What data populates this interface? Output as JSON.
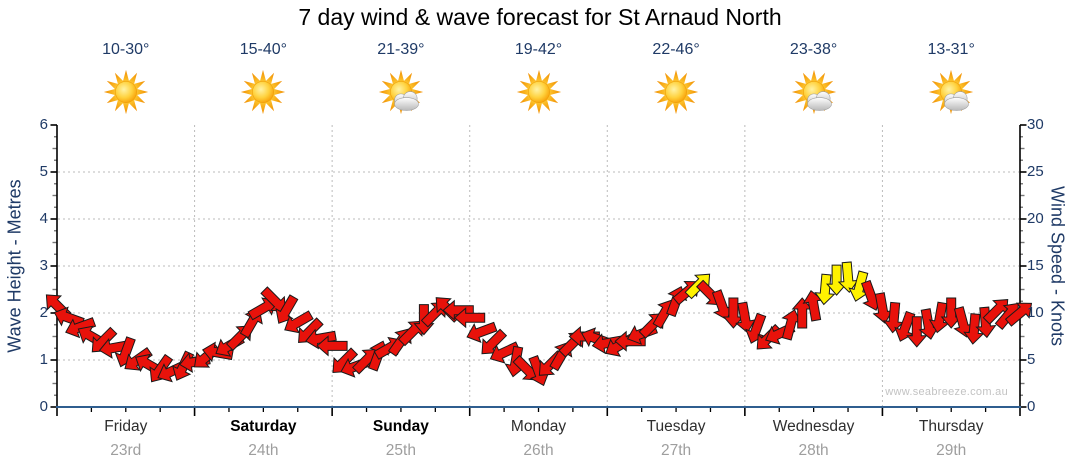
{
  "title": "7 day wind & wave forecast for St Arnaud North",
  "watermark": "www.seabreeze.com.au",
  "colors": {
    "arrow_red": "#E8120B",
    "arrow_yellow": "#FFF200",
    "arrow_outline": "#1A1A1A",
    "axis_text_navy": "#1F3A66",
    "bottom_axis_blue": "#2F5E8F",
    "axis_black": "#000000",
    "grid_gray": "#BBBBBB",
    "minor_tick_gray": "#777777",
    "day_name_gray": "#2e2e2e",
    "date_gray": "#9E9E9E",
    "watermark_gray": "#C3C3C3"
  },
  "days": [
    {
      "name": "Friday",
      "date": "23rd",
      "temp": "10-30°",
      "icon": "sun",
      "weekend": false
    },
    {
      "name": "Saturday",
      "date": "24th",
      "temp": "15-40°",
      "icon": "sun",
      "weekend": true
    },
    {
      "name": "Sunday",
      "date": "25th",
      "temp": "21-39°",
      "icon": "sun-cloud",
      "weekend": true
    },
    {
      "name": "Monday",
      "date": "26th",
      "temp": "19-42°",
      "icon": "sun",
      "weekend": false
    },
    {
      "name": "Tuesday",
      "date": "27th",
      "temp": "22-46°",
      "icon": "sun",
      "weekend": false
    },
    {
      "name": "Wednesday",
      "date": "28th",
      "temp": "23-38°",
      "icon": "sun-cloud",
      "weekend": false
    },
    {
      "name": "Thursday",
      "date": "29th",
      "temp": "13-31°",
      "icon": "sun-cloud",
      "weekend": false
    }
  ],
  "chart": {
    "left_axis": {
      "label": "Wave Height - Metres",
      "min": 0,
      "max": 6,
      "major_step": 1,
      "tick_labels": [
        "0",
        "1",
        "2",
        "3",
        "4",
        "5",
        "6"
      ]
    },
    "right_axis": {
      "label": "Wind Speed - Knots",
      "min": 0,
      "max": 30,
      "major_step": 5,
      "tick_labels": [
        "0",
        "5",
        "10",
        "15",
        "20",
        "25",
        "30"
      ]
    },
    "x_axis": {
      "total_hours": 168,
      "minor_tick_hours": 6,
      "major_tick_hours": 24,
      "day_count": 7
    }
  },
  "chart_data": {
    "type": "scatter",
    "title": "7 day wind & wave forecast for St Arnaud North",
    "series_name": "Wind speed & direction arrows",
    "interval_hours": 2,
    "point_format": [
      "wind_speed_knots",
      "wind_direction_deg_compass"
    ],
    "left_axis_range": [
      0,
      6
    ],
    "right_axis_range": [
      0,
      30
    ],
    "grid": true,
    "color_rules": {
      "yellow_min_knots": 12.5
    },
    "points": [
      [
        10.8,
        315
      ],
      [
        9.5,
        290
      ],
      [
        8.5,
        250
      ],
      [
        7.5,
        300
      ],
      [
        7.0,
        225
      ],
      [
        6.3,
        260
      ],
      [
        5.8,
        200
      ],
      [
        5.0,
        235
      ],
      [
        4.5,
        300
      ],
      [
        4.0,
        215
      ],
      [
        3.8,
        245
      ],
      [
        4.3,
        205
      ],
      [
        4.8,
        260
      ],
      [
        5.3,
        230
      ],
      [
        5.8,
        280
      ],
      [
        6.5,
        240
      ],
      [
        7.5,
        45
      ],
      [
        9.0,
        30
      ],
      [
        10.5,
        60
      ],
      [
        11.3,
        135
      ],
      [
        10.3,
        210
      ],
      [
        9.0,
        240
      ],
      [
        8.0,
        225
      ],
      [
        7.3,
        260
      ],
      [
        6.5,
        270
      ],
      [
        4.8,
        225
      ],
      [
        4.3,
        250
      ],
      [
        5.0,
        45
      ],
      [
        5.5,
        20
      ],
      [
        6.3,
        60
      ],
      [
        7.0,
        35
      ],
      [
        8.0,
        45
      ],
      [
        9.3,
        180
      ],
      [
        10.0,
        45
      ],
      [
        10.5,
        315
      ],
      [
        10.3,
        270
      ],
      [
        9.5,
        270
      ],
      [
        8.0,
        250
      ],
      [
        6.8,
        225
      ],
      [
        5.8,
        245
      ],
      [
        4.8,
        190
      ],
      [
        4.0,
        135
      ],
      [
        3.8,
        160
      ],
      [
        4.5,
        225
      ],
      [
        5.5,
        30
      ],
      [
        6.8,
        45
      ],
      [
        7.5,
        270
      ],
      [
        7.3,
        290
      ],
      [
        6.8,
        260
      ],
      [
        6.5,
        240
      ],
      [
        7.0,
        270
      ],
      [
        7.8,
        250
      ],
      [
        8.8,
        45
      ],
      [
        10.0,
        30
      ],
      [
        11.3,
        20
      ],
      [
        12.3,
        50
      ],
      [
        13.0,
        45
      ],
      [
        12.0,
        135
      ],
      [
        10.8,
        160
      ],
      [
        10.0,
        180
      ],
      [
        9.5,
        170
      ],
      [
        8.3,
        200
      ],
      [
        7.3,
        225
      ],
      [
        7.8,
        245
      ],
      [
        8.8,
        15
      ],
      [
        10.0,
        0
      ],
      [
        10.8,
        350
      ],
      [
        12.5,
        185
      ],
      [
        13.5,
        180
      ],
      [
        13.8,
        175
      ],
      [
        12.8,
        195
      ],
      [
        11.8,
        160
      ],
      [
        10.5,
        170
      ],
      [
        9.5,
        185
      ],
      [
        8.5,
        200
      ],
      [
        8.0,
        180
      ],
      [
        8.8,
        170
      ],
      [
        9.5,
        190
      ],
      [
        10.0,
        180
      ],
      [
        9.0,
        165
      ],
      [
        8.3,
        185
      ],
      [
        9.0,
        175
      ],
      [
        10.3,
        45
      ],
      [
        9.8,
        40
      ],
      [
        10.0,
        50
      ]
    ]
  }
}
